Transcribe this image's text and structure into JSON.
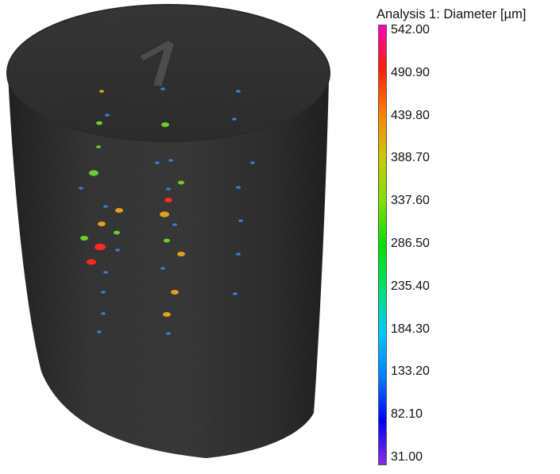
{
  "legend": {
    "title": "Analysis 1: Diameter [µm]",
    "colors": [
      "#8a2be2",
      "#0000ff",
      "#0080ff",
      "#00c8ff",
      "#00e070",
      "#00e000",
      "#80e000",
      "#c8c800",
      "#ff8000",
      "#ff2000",
      "#ff00c0"
    ],
    "ticks": [
      "542.00",
      "490.90",
      "439.80",
      "388.70",
      "337.60",
      "286.50",
      "235.40",
      "184.30",
      "133.20",
      "82.10",
      "31.00"
    ]
  },
  "scene": {
    "object": "cylindrical-specimen",
    "surface_color": "#3c3c3c",
    "engraved_mark": "1",
    "pore_colors": [
      "#ff2a1a",
      "#e0a020",
      "#6ad02a",
      "#3a7ad8"
    ]
  }
}
